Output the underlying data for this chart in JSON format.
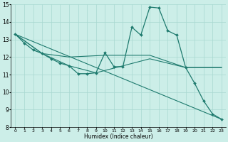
{
  "xlabel": "Humidex (Indice chaleur)",
  "bg_color": "#cceee8",
  "grid_color": "#a8d8d0",
  "line_color": "#1e7a6e",
  "xlim": [
    -0.5,
    23.5
  ],
  "ylim": [
    8,
    15
  ],
  "xticks": [
    0,
    1,
    2,
    3,
    4,
    5,
    6,
    7,
    8,
    9,
    10,
    11,
    12,
    13,
    14,
    15,
    16,
    17,
    18,
    19,
    20,
    21,
    22,
    23
  ],
  "yticks": [
    8,
    9,
    10,
    11,
    12,
    13,
    14,
    15
  ],
  "lines": [
    {
      "x": [
        0,
        1,
        2,
        3,
        4,
        5,
        6,
        7,
        8,
        9,
        10,
        11,
        12,
        13,
        14,
        15,
        16,
        17,
        18,
        19,
        20,
        21,
        22,
        23
      ],
      "y": [
        13.3,
        12.8,
        12.4,
        12.2,
        11.9,
        11.65,
        11.5,
        11.05,
        11.05,
        11.1,
        12.25,
        11.45,
        11.45,
        13.7,
        13.25,
        14.85,
        14.8,
        13.5,
        13.25,
        11.4,
        10.5,
        9.5,
        8.75,
        8.45
      ],
      "marker": true
    },
    {
      "x": [
        0,
        3,
        6,
        10,
        15,
        19,
        23
      ],
      "y": [
        13.3,
        12.2,
        12.0,
        12.1,
        12.1,
        11.4,
        11.4
      ],
      "marker": false
    },
    {
      "x": [
        0,
        3,
        6,
        9,
        12,
        15,
        19,
        23
      ],
      "y": [
        13.3,
        12.2,
        11.5,
        11.1,
        11.5,
        11.9,
        11.4,
        11.4
      ],
      "marker": false
    },
    {
      "x": [
        0,
        23
      ],
      "y": [
        13.3,
        8.45
      ],
      "marker": false
    }
  ]
}
